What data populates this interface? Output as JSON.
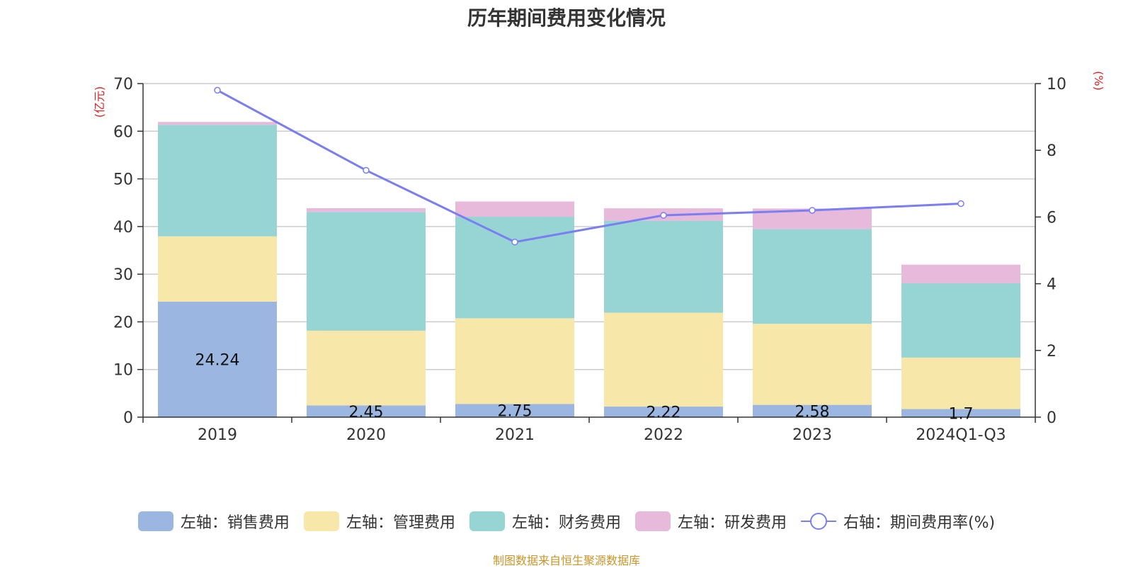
{
  "chart_data": {
    "type": "bar",
    "title": "历年期间费用变化情况",
    "categories": [
      "2019",
      "2020",
      "2021",
      "2022",
      "2023",
      "2024Q1-Q3"
    ],
    "left_axis": {
      "label": "(亿元)",
      "ylim": [
        0,
        70
      ],
      "ticks": [
        0,
        10,
        20,
        30,
        40,
        50,
        60,
        70
      ]
    },
    "right_axis": {
      "label": "(%)",
      "ylim": [
        0,
        10
      ],
      "ticks": [
        0,
        2,
        4,
        6,
        8,
        10
      ]
    },
    "series": [
      {
        "name": "左轴：销售费用",
        "axis": "left",
        "stack": true,
        "color": "#9bb6e0",
        "values": [
          24.24,
          2.45,
          2.75,
          2.22,
          2.58,
          1.7
        ],
        "labels": [
          "24.24",
          "2.45",
          "2.75",
          "2.22",
          "2.58",
          "1.7"
        ]
      },
      {
        "name": "左轴：管理费用",
        "axis": "left",
        "stack": true,
        "color": "#f7e7a8",
        "values": [
          13.7,
          15.7,
          18.0,
          19.7,
          17.0,
          10.8
        ]
      },
      {
        "name": "左轴：财务费用",
        "axis": "left",
        "stack": true,
        "color": "#97d4d4",
        "values": [
          23.4,
          24.9,
          21.3,
          19.3,
          19.9,
          15.6
        ]
      },
      {
        "name": "左轴：研发费用",
        "axis": "left",
        "stack": true,
        "color": "#e7b9da",
        "values": [
          0.6,
          0.8,
          3.2,
          2.6,
          4.3,
          3.9
        ]
      },
      {
        "name": "右轴：期间费用率(%)",
        "axis": "right",
        "type": "line",
        "color": "#7b7ef0",
        "values": [
          9.8,
          7.4,
          5.25,
          6.05,
          6.2,
          6.4
        ]
      }
    ],
    "legend_position": "bottom",
    "grid": true
  },
  "source_text": "制图数据来自恒生聚源数据库"
}
